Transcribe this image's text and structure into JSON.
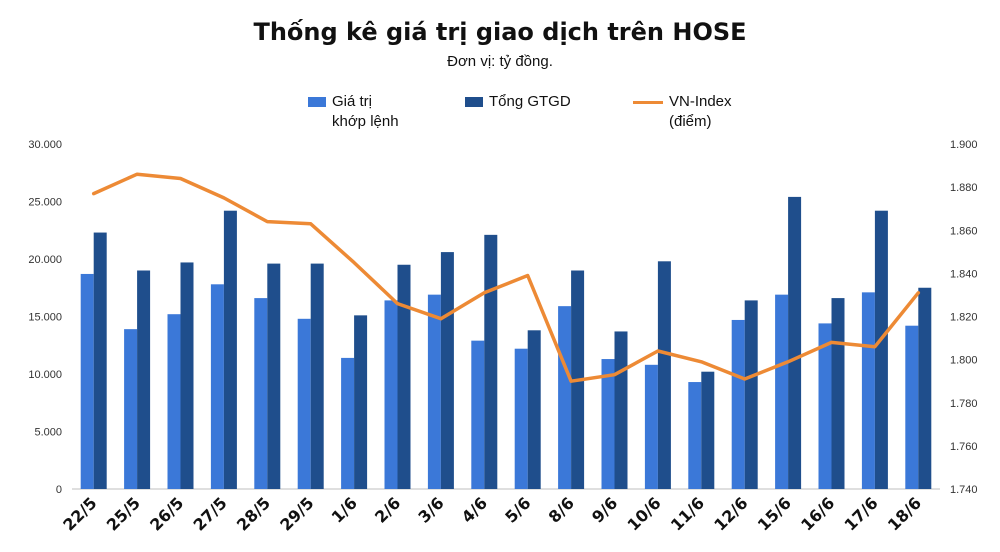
{
  "title": "Thống kê giá trị giao dịch trên HOSE",
  "subtitle": "Đơn vị: tỷ đồng.",
  "chart_data": {
    "type": "bar",
    "categories": [
      "22/5",
      "25/5",
      "26/5",
      "27/5",
      "28/5",
      "29/5",
      "1/6",
      "2/6",
      "3/6",
      "4/6",
      "5/6",
      "8/6",
      "9/6",
      "10/6",
      "11/6",
      "12/6",
      "15/6",
      "16/6",
      "17/6",
      "18/6"
    ],
    "series": [
      {
        "name": "Giá trị\nkhớp lệnh",
        "type": "bar",
        "axis": "left",
        "color": "#3b78d8",
        "values": [
          18700,
          13900,
          15200,
          17800,
          16600,
          14800,
          11400,
          16400,
          16900,
          12900,
          12200,
          15900,
          11300,
          10800,
          9300,
          14700,
          16900,
          14400,
          17100,
          14200
        ]
      },
      {
        "name": "Tổng GTGD",
        "type": "bar",
        "axis": "left",
        "color": "#1f4e8c",
        "values": [
          22300,
          19000,
          19700,
          24200,
          19600,
          19600,
          15100,
          19500,
          20600,
          22100,
          13800,
          19000,
          13700,
          19800,
          10200,
          16400,
          25400,
          16600,
          24200,
          17500
        ]
      },
      {
        "name": "VN-Index\n(điểm)",
        "type": "line",
        "axis": "right",
        "color": "#ed8a35",
        "values": [
          1877,
          1886,
          1884,
          1875,
          1864,
          1863,
          1845,
          1826,
          1819,
          1831,
          1839,
          1790,
          1793,
          1804,
          1799,
          1791,
          1799,
          1808,
          1806,
          1831
        ]
      }
    ],
    "y_left": {
      "min": 0,
      "max": 30000,
      "ticks": [
        "0",
        "5.000",
        "10.000",
        "15.000",
        "20.000",
        "25.000",
        "30.000"
      ]
    },
    "y_right": {
      "min": 1740,
      "max": 1900,
      "ticks": [
        "1.740",
        "1.760",
        "1.780",
        "1.800",
        "1.820",
        "1.840",
        "1.860",
        "1.880",
        "1.900"
      ]
    },
    "grid": false,
    "legend_position": "top"
  }
}
